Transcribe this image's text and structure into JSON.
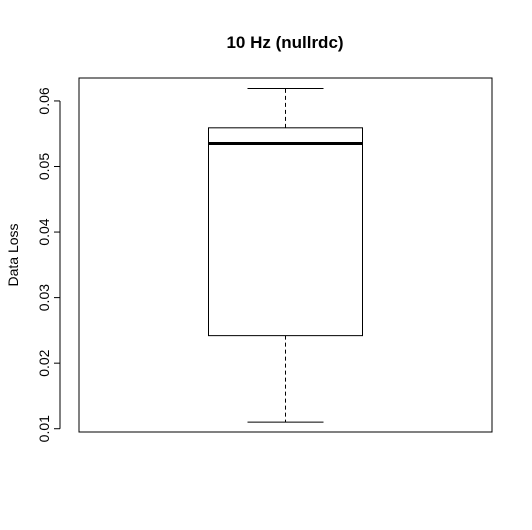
{
  "chart_data": {
    "type": "boxplot",
    "title": "10 Hz (nullrdc)",
    "xlabel": "",
    "ylabel": "Data Loss",
    "ylim": [
      0.0095,
      0.0635
    ],
    "yticks": [
      {
        "value": 0.01,
        "label": "0.01"
      },
      {
        "value": 0.02,
        "label": "0.02"
      },
      {
        "value": 0.03,
        "label": "0.03"
      },
      {
        "value": 0.04,
        "label": "0.04"
      },
      {
        "value": 0.05,
        "label": "0.05"
      },
      {
        "value": 0.06,
        "label": "0.06"
      }
    ],
    "box": {
      "min": 0.011,
      "q1": 0.0242,
      "median": 0.0535,
      "q3": 0.0559,
      "max": 0.0619
    },
    "grid": false
  }
}
